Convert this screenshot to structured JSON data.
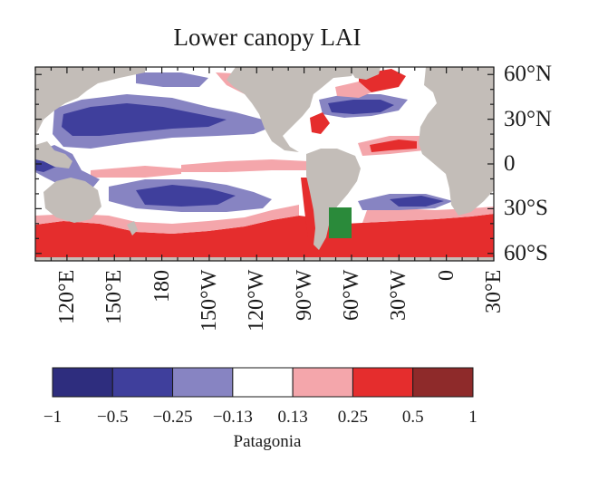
{
  "title": "Lower canopy LAI",
  "map": {
    "lon_range": [
      100,
      390
    ],
    "lat_range": [
      -65,
      65
    ],
    "colors": {
      "land": "#c3bdb8",
      "ocean": "#ffffff",
      "patagonia": "#2a8a3a",
      "neg_strong": "#2e2d7e",
      "neg_mid": "#3f3f9c",
      "neg_weak": "#8784c2",
      "pos_weak": "#f4a6ab",
      "pos_mid": "#e52d2d",
      "pos_strong": "#8e2a2a",
      "grid": "#1a1a1a"
    },
    "lat_labels": [
      {
        "lat": 60,
        "text": "60°N"
      },
      {
        "lat": 30,
        "text": "30°N"
      },
      {
        "lat": 0,
        "text": "0"
      },
      {
        "lat": -30,
        "text": "30°S"
      },
      {
        "lat": -60,
        "text": "60°S"
      }
    ],
    "lon_labels": [
      {
        "lon": 120,
        "text": "120°E"
      },
      {
        "lon": 150,
        "text": "150°E"
      },
      {
        "lon": 180,
        "text": "180"
      },
      {
        "lon": 210,
        "text": "150°W"
      },
      {
        "lon": 240,
        "text": "120°W"
      },
      {
        "lon": 270,
        "text": "90°W"
      },
      {
        "lon": 300,
        "text": "60°W"
      },
      {
        "lon": 330,
        "text": "30°W"
      },
      {
        "lon": 360,
        "text": "0"
      },
      {
        "lon": 390,
        "text": "30°E"
      }
    ]
  },
  "colorbar": {
    "bins": [
      "#2e2d7e",
      "#3f3f9c",
      "#8784c2",
      "#ffffff",
      "#f4a6ab",
      "#e52d2d",
      "#8e2a2a"
    ],
    "tick_labels": [
      "−1",
      "−0.5",
      "−0.25",
      "−0.13",
      "0.13",
      "0.25",
      "0.5",
      "1"
    ],
    "label": "Patagonia"
  }
}
